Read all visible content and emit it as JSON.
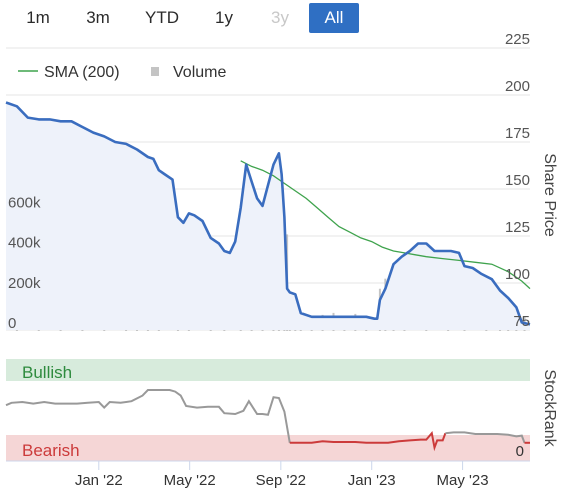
{
  "range_selector": {
    "buttons": [
      {
        "label": "1m",
        "state": "normal"
      },
      {
        "label": "3m",
        "state": "normal"
      },
      {
        "label": "YTD",
        "state": "normal"
      },
      {
        "label": "1y",
        "state": "normal"
      },
      {
        "label": "3y",
        "state": "disabled"
      },
      {
        "label": "All",
        "state": "active"
      }
    ]
  },
  "colors": {
    "price": "#3a6dbf",
    "price_fill": "#eef2fa",
    "sma": "#3fa34d",
    "volume": "#c4c4c4",
    "stockrank": "#999999",
    "stockrank_bearish": "#cc3b3b",
    "bullish_band": "#d7ebdc",
    "bearish_band": "#f5d6d6",
    "bullish_text": "#2e8b3e",
    "bearish_text": "#cc3b3b",
    "active_button": "#2f6fc3"
  },
  "chart_data": [
    {
      "type": "line",
      "legend": [
        {
          "label": "SMA (200)",
          "icon": "line"
        },
        {
          "label": "Volume",
          "icon": "square"
        }
      ],
      "right_axis_title": "Share Price",
      "right_axis_ticks": [
        "75",
        "100",
        "125",
        "150",
        "175",
        "200",
        "225"
      ],
      "left_axis_ticks": [
        "0",
        "200k",
        "400k",
        "600k"
      ],
      "x_ticks": [
        "Jan '22",
        "May '22",
        "Sep '22",
        "Jan '23",
        "May '23"
      ],
      "price_range": [
        75,
        225
      ],
      "volume_range": [
        0,
        800000
      ],
      "time_range": [
        2021.66,
        2023.58
      ],
      "price_series": [
        [
          2021.66,
          196
        ],
        [
          2021.7,
          194
        ],
        [
          2021.74,
          188
        ],
        [
          2021.78,
          187
        ],
        [
          2021.82,
          187
        ],
        [
          2021.86,
          186
        ],
        [
          2021.9,
          186
        ],
        [
          2021.94,
          183
        ],
        [
          2021.98,
          180
        ],
        [
          2022.02,
          178
        ],
        [
          2022.06,
          175
        ],
        [
          2022.1,
          174
        ],
        [
          2022.14,
          171
        ],
        [
          2022.18,
          167
        ],
        [
          2022.2,
          166
        ],
        [
          2022.22,
          160
        ],
        [
          2022.24,
          158
        ],
        [
          2022.27,
          155
        ],
        [
          2022.29,
          135
        ],
        [
          2022.31,
          132
        ],
        [
          2022.33,
          137
        ],
        [
          2022.35,
          136
        ],
        [
          2022.38,
          133
        ],
        [
          2022.41,
          124
        ],
        [
          2022.44,
          121
        ],
        [
          2022.46,
          117
        ],
        [
          2022.48,
          116
        ],
        [
          2022.5,
          122
        ],
        [
          2022.52,
          140
        ],
        [
          2022.54,
          163
        ],
        [
          2022.56,
          154
        ],
        [
          2022.58,
          145
        ],
        [
          2022.6,
          141
        ],
        [
          2022.62,
          152
        ],
        [
          2022.64,
          163
        ],
        [
          2022.66,
          169
        ],
        [
          2022.67,
          158
        ],
        [
          2022.68,
          135
        ],
        [
          2022.69,
          97
        ],
        [
          2022.7,
          95
        ],
        [
          2022.72,
          94
        ],
        [
          2022.74,
          84
        ],
        [
          2022.78,
          82
        ],
        [
          2022.82,
          82
        ],
        [
          2022.86,
          82
        ],
        [
          2022.9,
          82
        ],
        [
          2022.94,
          82
        ],
        [
          2022.98,
          82
        ],
        [
          2023.01,
          81
        ],
        [
          2023.02,
          81
        ],
        [
          2023.03,
          91
        ],
        [
          2023.05,
          97
        ],
        [
          2023.08,
          110
        ],
        [
          2023.11,
          114
        ],
        [
          2023.14,
          117
        ],
        [
          2023.17,
          121
        ],
        [
          2023.2,
          121
        ],
        [
          2023.23,
          117
        ],
        [
          2023.26,
          117
        ],
        [
          2023.29,
          117
        ],
        [
          2023.32,
          116
        ],
        [
          2023.34,
          109
        ],
        [
          2023.37,
          108
        ],
        [
          2023.4,
          105
        ],
        [
          2023.44,
          102
        ],
        [
          2023.47,
          96
        ],
        [
          2023.5,
          92
        ],
        [
          2023.53,
          87
        ],
        [
          2023.55,
          79
        ],
        [
          2023.58,
          78
        ]
      ],
      "sma_series": [
        [
          2022.52,
          165
        ],
        [
          2022.56,
          162
        ],
        [
          2022.6,
          160
        ],
        [
          2022.64,
          157
        ],
        [
          2022.68,
          153
        ],
        [
          2022.72,
          149
        ],
        [
          2022.76,
          145
        ],
        [
          2022.8,
          140
        ],
        [
          2022.84,
          135
        ],
        [
          2022.88,
          130
        ],
        [
          2022.92,
          127
        ],
        [
          2022.96,
          124
        ],
        [
          2023.0,
          122
        ],
        [
          2023.04,
          119
        ],
        [
          2023.08,
          117
        ],
        [
          2023.12,
          116
        ],
        [
          2023.16,
          115
        ],
        [
          2023.2,
          114
        ],
        [
          2023.26,
          113
        ],
        [
          2023.32,
          112
        ],
        [
          2023.38,
          111
        ],
        [
          2023.44,
          110
        ],
        [
          2023.5,
          106
        ],
        [
          2023.55,
          101
        ],
        [
          2023.58,
          97
        ]
      ],
      "volume_series": [
        [
          2021.7,
          50000
        ],
        [
          2021.78,
          40000
        ],
        [
          2021.86,
          55000
        ],
        [
          2021.94,
          45000
        ],
        [
          2022.02,
          60000
        ],
        [
          2022.1,
          50000
        ],
        [
          2022.14,
          160000
        ],
        [
          2022.18,
          70000
        ],
        [
          2022.22,
          100000
        ],
        [
          2022.29,
          240000
        ],
        [
          2022.33,
          90000
        ],
        [
          2022.41,
          70000
        ],
        [
          2022.46,
          80000
        ],
        [
          2022.52,
          90000
        ],
        [
          2022.56,
          110000
        ],
        [
          2022.6,
          70000
        ],
        [
          2022.64,
          120000
        ],
        [
          2022.66,
          330000
        ],
        [
          2022.68,
          280000
        ],
        [
          2022.69,
          480000
        ],
        [
          2022.7,
          170000
        ],
        [
          2022.72,
          120000
        ],
        [
          2022.74,
          90000
        ],
        [
          2022.78,
          70000
        ],
        [
          2022.82,
          80000
        ],
        [
          2022.86,
          90000
        ],
        [
          2022.9,
          75000
        ],
        [
          2022.94,
          85000
        ],
        [
          2022.98,
          70000
        ],
        [
          2023.03,
          210000
        ],
        [
          2023.05,
          260000
        ],
        [
          2023.08,
          110000
        ],
        [
          2023.12,
          80000
        ],
        [
          2023.2,
          70000
        ],
        [
          2023.28,
          90000
        ],
        [
          2023.34,
          60000
        ],
        [
          2023.42,
          70000
        ],
        [
          2023.47,
          150000
        ],
        [
          2023.5,
          80000
        ],
        [
          2023.53,
          110000
        ],
        [
          2023.56,
          70000
        ]
      ]
    },
    {
      "type": "line",
      "right_axis_title": "StockRank",
      "right_axis_ticks": [
        "0"
      ],
      "zones": [
        "Bullish",
        "Bearish"
      ],
      "value_range": [
        0,
        100
      ],
      "time_range": [
        2021.66,
        2023.58
      ],
      "rank_series": [
        [
          2021.66,
          56
        ],
        [
          2021.68,
          59
        ],
        [
          2021.72,
          60
        ],
        [
          2021.76,
          58
        ],
        [
          2021.8,
          60
        ],
        [
          2021.84,
          58
        ],
        [
          2021.88,
          58
        ],
        [
          2021.92,
          58
        ],
        [
          2021.96,
          59
        ],
        [
          2022.0,
          60
        ],
        [
          2022.02,
          53
        ],
        [
          2022.04,
          60
        ],
        [
          2022.08,
          59
        ],
        [
          2022.12,
          61
        ],
        [
          2022.16,
          68
        ],
        [
          2022.18,
          75
        ],
        [
          2022.22,
          75
        ],
        [
          2022.26,
          75
        ],
        [
          2022.28,
          73
        ],
        [
          2022.3,
          68
        ],
        [
          2022.32,
          55
        ],
        [
          2022.36,
          53
        ],
        [
          2022.4,
          54
        ],
        [
          2022.44,
          54
        ],
        [
          2022.46,
          46
        ],
        [
          2022.5,
          45
        ],
        [
          2022.53,
          49
        ],
        [
          2022.55,
          61
        ],
        [
          2022.58,
          45
        ],
        [
          2022.6,
          45
        ],
        [
          2022.62,
          44
        ],
        [
          2022.64,
          66
        ],
        [
          2022.66,
          65
        ],
        [
          2022.68,
          48
        ],
        [
          2022.7,
          9
        ]
      ],
      "rank_bearish_series": [
        [
          2022.7,
          9
        ],
        [
          2022.74,
          9
        ],
        [
          2022.78,
          9
        ],
        [
          2022.82,
          11
        ],
        [
          2022.86,
          10
        ],
        [
          2022.9,
          10
        ],
        [
          2022.94,
          10
        ],
        [
          2022.98,
          9
        ],
        [
          2023.02,
          9
        ],
        [
          2023.06,
          9
        ],
        [
          2023.1,
          11
        ],
        [
          2023.14,
          12
        ],
        [
          2023.18,
          13
        ],
        [
          2023.2,
          13
        ],
        [
          2023.22,
          21
        ],
        [
          2023.23,
          3
        ],
        [
          2023.24,
          12
        ],
        [
          2023.26,
          12
        ],
        [
          2023.27,
          21
        ]
      ],
      "rank_recover_series": [
        [
          2023.27,
          21
        ],
        [
          2023.3,
          22
        ],
        [
          2023.34,
          22
        ],
        [
          2023.38,
          20
        ],
        [
          2023.42,
          20
        ],
        [
          2023.46,
          20
        ],
        [
          2023.5,
          19
        ],
        [
          2023.53,
          17
        ],
        [
          2023.55,
          18
        ],
        [
          2023.56,
          9
        ]
      ],
      "rank_tail_series": [
        [
          2023.56,
          9
        ],
        [
          2023.58,
          9
        ]
      ]
    }
  ]
}
